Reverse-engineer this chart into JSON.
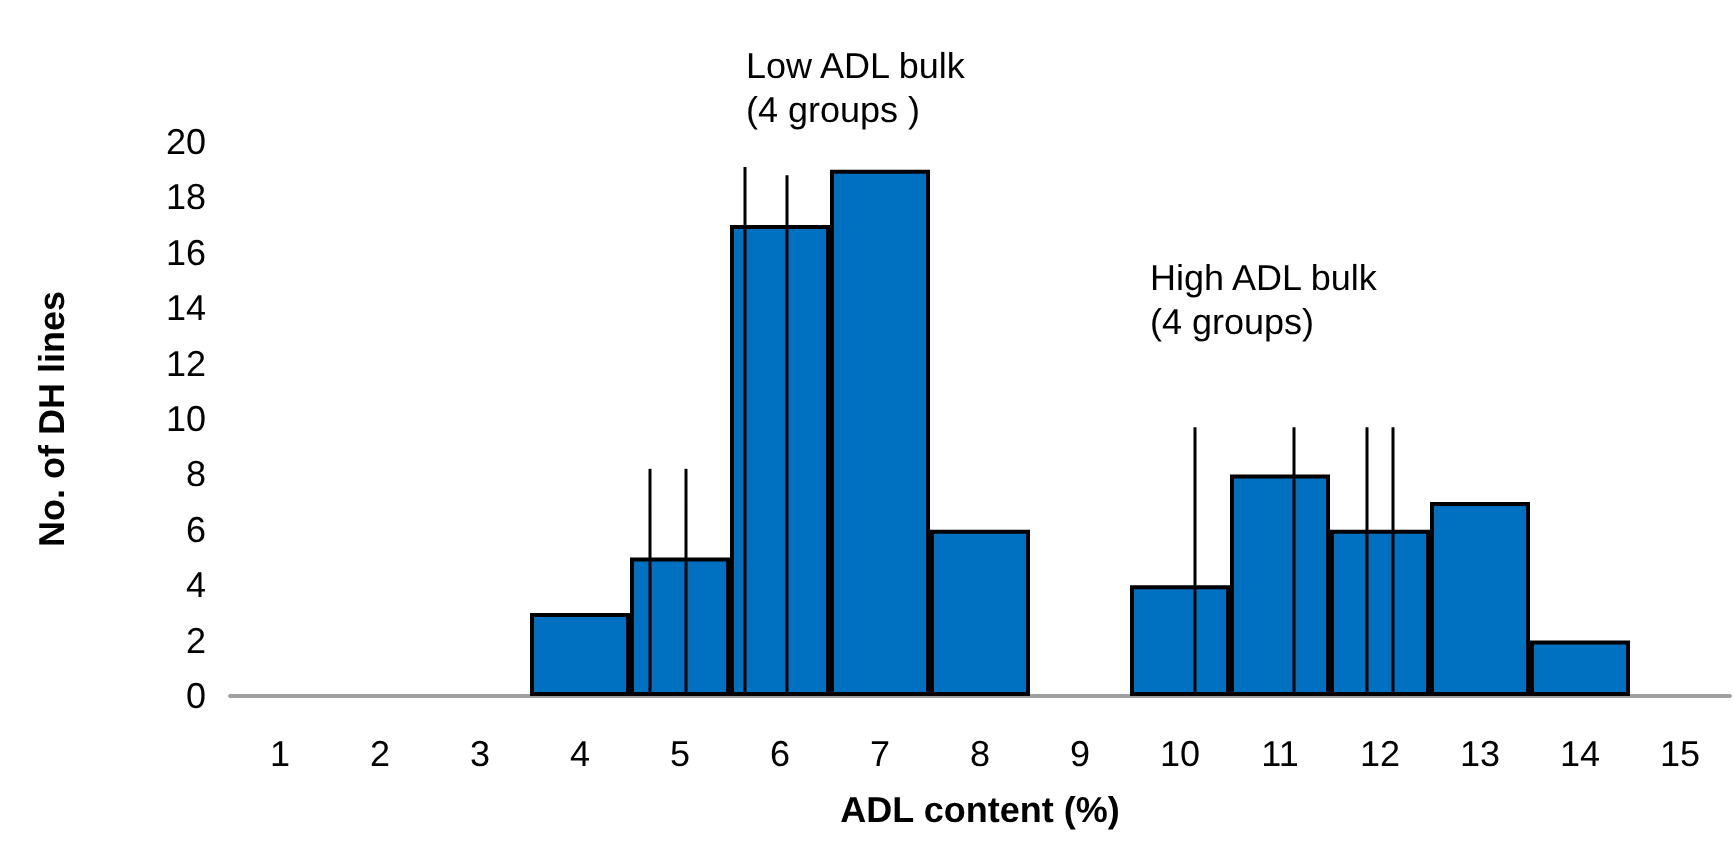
{
  "chart_data": {
    "type": "bar",
    "xlabel": "ADL content (%)",
    "ylabel": "No. of DH lines",
    "x": [
      1,
      2,
      3,
      4,
      5,
      6,
      7,
      8,
      9,
      10,
      11,
      12,
      13,
      14,
      15
    ],
    "xlim": [
      0.5,
      15.5
    ],
    "xticks": [
      1,
      2,
      3,
      4,
      5,
      6,
      7,
      8,
      9,
      10,
      11,
      12,
      13,
      14,
      15
    ],
    "ylim": [
      0,
      20
    ],
    "yticks": [
      0,
      2,
      4,
      6,
      8,
      10,
      12,
      14,
      16,
      18,
      20
    ],
    "grid": false,
    "annotations": [
      "Low ADL bulk\n(4 groups )",
      "High ADL bulk\n(4 groups)"
    ],
    "series": [
      {
        "color": "#0070c0",
        "values": [
          0,
          0,
          0,
          3,
          5,
          17,
          19,
          6,
          0,
          4,
          8,
          6,
          7,
          2,
          0
        ]
      },
      {
        "type": "line",
        "color": "#000000",
        "x": [
          4.7,
          4.7
        ],
        "values": [
          0,
          8.2
        ]
      },
      {
        "type": "line",
        "color": "#000000",
        "x": [
          5.06,
          5.06
        ],
        "values": [
          0,
          8.2
        ]
      },
      {
        "type": "line",
        "color": "#000000",
        "x": [
          5.65,
          5.65
        ],
        "values": [
          0,
          19.1
        ]
      },
      {
        "type": "line",
        "color": "#000000",
        "x": [
          6.07,
          6.07
        ],
        "values": [
          0,
          18.8
        ]
      },
      {
        "type": "line",
        "color": "#000000",
        "x": [
          10.15,
          10.15
        ],
        "values": [
          0,
          9.7
        ]
      },
      {
        "type": "line",
        "color": "#000000",
        "x": [
          11.14,
          11.14
        ],
        "values": [
          0,
          9.7
        ]
      },
      {
        "type": "line",
        "color": "#000000",
        "x": [
          11.87,
          11.87
        ],
        "values": [
          0,
          9.7
        ]
      },
      {
        "type": "line",
        "color": "#000000",
        "x": [
          12.13,
          12.13
        ],
        "values": [
          0,
          9.7
        ]
      }
    ],
    "marker": "none",
    "line_style": "solid"
  }
}
